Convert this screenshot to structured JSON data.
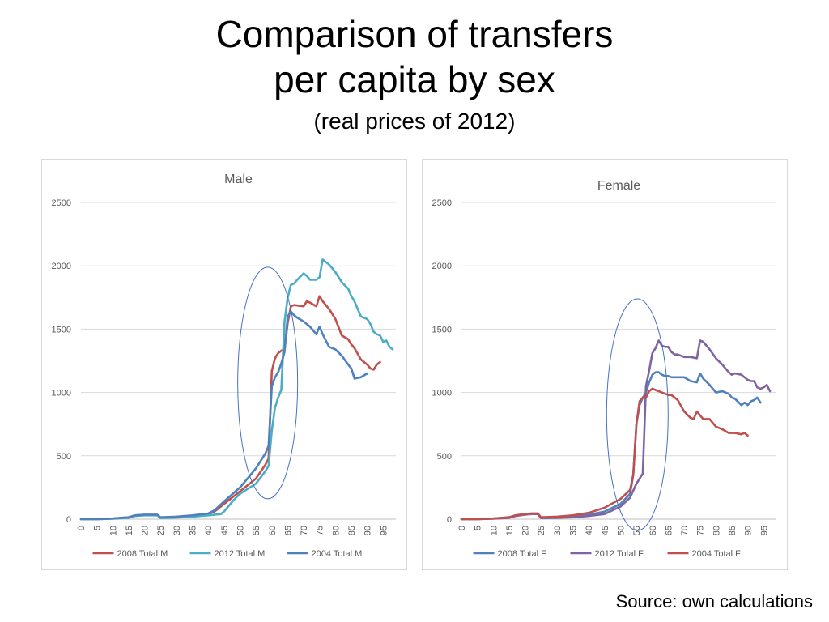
{
  "page": {
    "title_line1": "Comparison of transfers",
    "title_line2": "per capita by sex",
    "subtitle": "(real prices of 2012)",
    "source": "Source: own calculations"
  },
  "chart_data": [
    {
      "type": "line",
      "title": "Male",
      "xlabel": "",
      "ylabel": "",
      "xlim": [
        0,
        99
      ],
      "ylim": [
        0,
        2500
      ],
      "yticks": [
        0,
        500,
        1000,
        1500,
        2000,
        2500
      ],
      "xticks": [
        0,
        5,
        10,
        15,
        20,
        25,
        30,
        35,
        40,
        45,
        50,
        55,
        60,
        65,
        70,
        75,
        80,
        85,
        90,
        95
      ],
      "grid": true,
      "legend_position": "bottom",
      "annotation": "ellipse around ages 50-67",
      "series": [
        {
          "name": "2008 Total M",
          "color": "#C0504D",
          "x": [
            0,
            5,
            10,
            15,
            17,
            20,
            22,
            24,
            25,
            30,
            35,
            40,
            42,
            45,
            50,
            55,
            58,
            59,
            60,
            61,
            62,
            63,
            64,
            65,
            66,
            67,
            70,
            71,
            72,
            74,
            75,
            76,
            78,
            80,
            82,
            84,
            85,
            86,
            88,
            90,
            91,
            92,
            93,
            94
          ],
          "y": [
            0,
            0,
            5,
            15,
            30,
            35,
            35,
            35,
            10,
            15,
            25,
            40,
            60,
            120,
            220,
            320,
            430,
            480,
            1170,
            1270,
            1310,
            1330,
            1340,
            1550,
            1680,
            1690,
            1680,
            1720,
            1710,
            1680,
            1760,
            1720,
            1660,
            1580,
            1450,
            1420,
            1380,
            1350,
            1260,
            1220,
            1190,
            1180,
            1220,
            1240
          ]
        },
        {
          "name": "2012 Total M",
          "color": "#4BACC6",
          "x": [
            0,
            5,
            10,
            15,
            17,
            20,
            22,
            24,
            25,
            30,
            35,
            40,
            44,
            45,
            48,
            50,
            55,
            58,
            59,
            60,
            61,
            62,
            63,
            64,
            65,
            66,
            67,
            68,
            70,
            71,
            72,
            74,
            75,
            76,
            78,
            80,
            82,
            84,
            85,
            86,
            88,
            90,
            91,
            92,
            93,
            94,
            95,
            96,
            97,
            98
          ],
          "y": [
            0,
            0,
            3,
            10,
            25,
            30,
            30,
            30,
            8,
            12,
            20,
            30,
            40,
            60,
            150,
            200,
            280,
            380,
            420,
            700,
            880,
            960,
            1020,
            1560,
            1750,
            1850,
            1860,
            1890,
            1940,
            1920,
            1890,
            1890,
            1910,
            2050,
            2010,
            1950,
            1870,
            1820,
            1760,
            1720,
            1600,
            1580,
            1540,
            1480,
            1460,
            1450,
            1400,
            1410,
            1360,
            1340
          ]
        },
        {
          "name": "2004 Total M",
          "color": "#4F81BD",
          "x": [
            0,
            5,
            10,
            15,
            17,
            20,
            22,
            24,
            25,
            30,
            35,
            40,
            42,
            45,
            50,
            55,
            58,
            59,
            60,
            61,
            62,
            63,
            64,
            65,
            66,
            67,
            68,
            70,
            72,
            74,
            75,
            76,
            78,
            80,
            82,
            84,
            85,
            86,
            88,
            90
          ],
          "y": [
            0,
            0,
            5,
            15,
            30,
            35,
            35,
            35,
            15,
            20,
            30,
            45,
            70,
            140,
            250,
            400,
            520,
            580,
            1050,
            1120,
            1160,
            1230,
            1320,
            1600,
            1640,
            1610,
            1590,
            1560,
            1520,
            1460,
            1520,
            1460,
            1360,
            1340,
            1290,
            1220,
            1190,
            1110,
            1120,
            1150
          ]
        }
      ]
    },
    {
      "type": "line",
      "title": "Female",
      "xlabel": "",
      "ylabel": "",
      "xlim": [
        0,
        99
      ],
      "ylim": [
        0,
        2500
      ],
      "yticks": [
        0,
        500,
        1000,
        1500,
        2000,
        2500
      ],
      "xticks": [
        0,
        5,
        10,
        15,
        20,
        25,
        30,
        35,
        40,
        45,
        50,
        55,
        60,
        65,
        70,
        75,
        80,
        85,
        90,
        95
      ],
      "grid": true,
      "legend_position": "bottom",
      "annotation": "ellipse around ages 43-61",
      "series": [
        {
          "name": "2008 Total F",
          "color": "#4F81BD",
          "x": [
            0,
            5,
            10,
            15,
            17,
            20,
            22,
            24,
            25,
            30,
            35,
            40,
            45,
            50,
            53,
            54,
            55,
            56,
            57,
            58,
            59,
            60,
            61,
            62,
            63,
            64,
            65,
            66,
            67,
            70,
            72,
            74,
            75,
            76,
            78,
            80,
            82,
            84,
            85,
            86,
            88,
            89,
            90,
            91,
            92,
            93,
            94
          ],
          "y": [
            0,
            0,
            5,
            15,
            30,
            40,
            45,
            45,
            10,
            15,
            20,
            35,
            60,
            120,
            200,
            350,
            750,
            900,
            960,
            1000,
            1080,
            1140,
            1160,
            1160,
            1140,
            1130,
            1130,
            1120,
            1120,
            1120,
            1090,
            1080,
            1150,
            1110,
            1060,
            1000,
            1010,
            990,
            960,
            950,
            900,
            920,
            900,
            930,
            940,
            960,
            920
          ]
        },
        {
          "name": "2012 Total F",
          "color": "#8064A2",
          "x": [
            0,
            5,
            10,
            15,
            17,
            20,
            22,
            24,
            25,
            30,
            35,
            40,
            45,
            50,
            53,
            55,
            56,
            57,
            58,
            59,
            60,
            61,
            62,
            63,
            64,
            65,
            66,
            67,
            68,
            70,
            72,
            74,
            75,
            76,
            78,
            80,
            82,
            84,
            85,
            86,
            88,
            90,
            91,
            92,
            93,
            94,
            95,
            96,
            97
          ],
          "y": [
            0,
            0,
            3,
            10,
            25,
            35,
            40,
            40,
            8,
            10,
            15,
            25,
            40,
            100,
            170,
            280,
            320,
            360,
            1050,
            1170,
            1310,
            1350,
            1410,
            1370,
            1360,
            1360,
            1320,
            1300,
            1300,
            1280,
            1280,
            1270,
            1410,
            1400,
            1340,
            1270,
            1220,
            1160,
            1140,
            1150,
            1140,
            1100,
            1090,
            1090,
            1040,
            1030,
            1040,
            1060,
            1010
          ]
        },
        {
          "name": "2004 Total F",
          "color": "#C0504D",
          "x": [
            0,
            5,
            10,
            15,
            17,
            20,
            22,
            24,
            25,
            30,
            35,
            40,
            45,
            50,
            53,
            54,
            55,
            56,
            57,
            58,
            59,
            60,
            61,
            62,
            63,
            64,
            65,
            66,
            67,
            68,
            70,
            72,
            73,
            74,
            75,
            76,
            78,
            80,
            82,
            84,
            85,
            86,
            88,
            89,
            90
          ],
          "y": [
            0,
            0,
            5,
            15,
            30,
            40,
            45,
            45,
            15,
            20,
            30,
            50,
            90,
            160,
            230,
            350,
            750,
            930,
            960,
            960,
            1010,
            1030,
            1020,
            1010,
            1000,
            990,
            980,
            980,
            960,
            940,
            850,
            800,
            790,
            850,
            820,
            790,
            790,
            730,
            710,
            680,
            680,
            680,
            670,
            680,
            660
          ]
        }
      ]
    }
  ]
}
